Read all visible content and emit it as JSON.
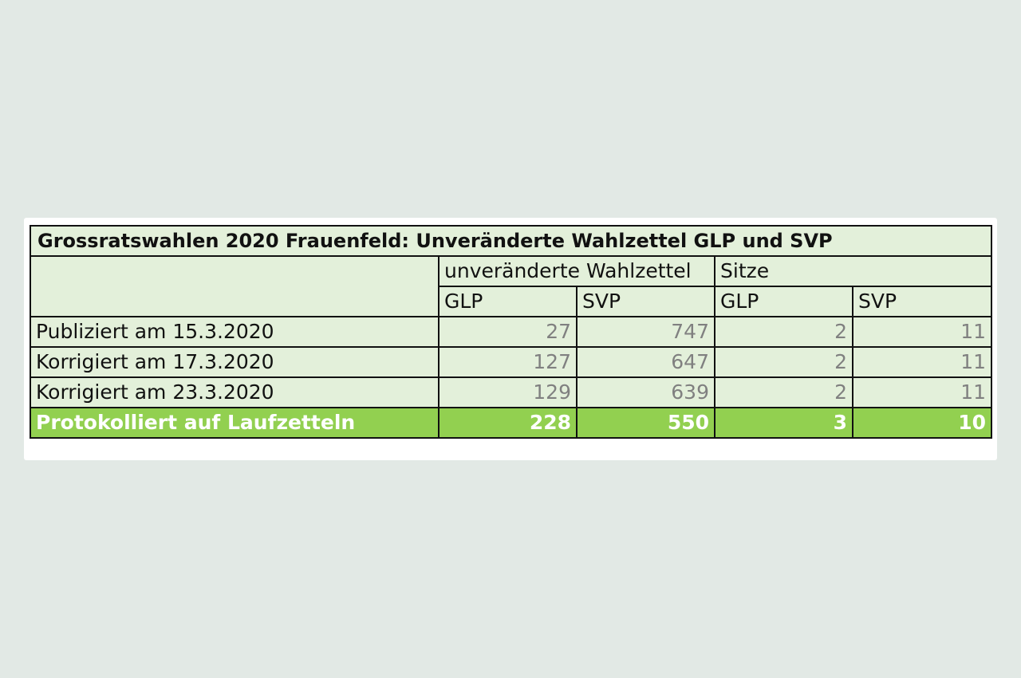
{
  "table": {
    "title": "Grossratswahlen 2020 Frauenfeld: Unveränderte Wahlzettel GLP und SVP",
    "group_headers": {
      "ballots": "unveränderte Wahlzettel",
      "seats": "Sitze"
    },
    "sub_headers": {
      "ballots_glp": "GLP",
      "ballots_svp": "SVP",
      "seats_glp": "GLP",
      "seats_svp": "SVP"
    },
    "rows": [
      {
        "label": "Publiziert am 15.3.2020",
        "ballots_glp": "27",
        "ballots_svp": "747",
        "seats_glp": "2",
        "seats_svp": "11"
      },
      {
        "label": "Korrigiert am 17.3.2020",
        "ballots_glp": "127",
        "ballots_svp": "647",
        "seats_glp": "2",
        "seats_svp": "11"
      },
      {
        "label": "Korrigiert am 23.3.2020",
        "ballots_glp": "129",
        "ballots_svp": "639",
        "seats_glp": "2",
        "seats_svp": "11"
      }
    ],
    "total": {
      "label": "Protokolliert auf Laufzetteln",
      "ballots_glp": "228",
      "ballots_svp": "550",
      "seats_glp": "3",
      "seats_svp": "10"
    }
  },
  "colors": {
    "page_background": "#e2e9e5",
    "table_fill": "#e3f0da",
    "total_row_fill": "#92d050",
    "value_text": "#808080"
  }
}
